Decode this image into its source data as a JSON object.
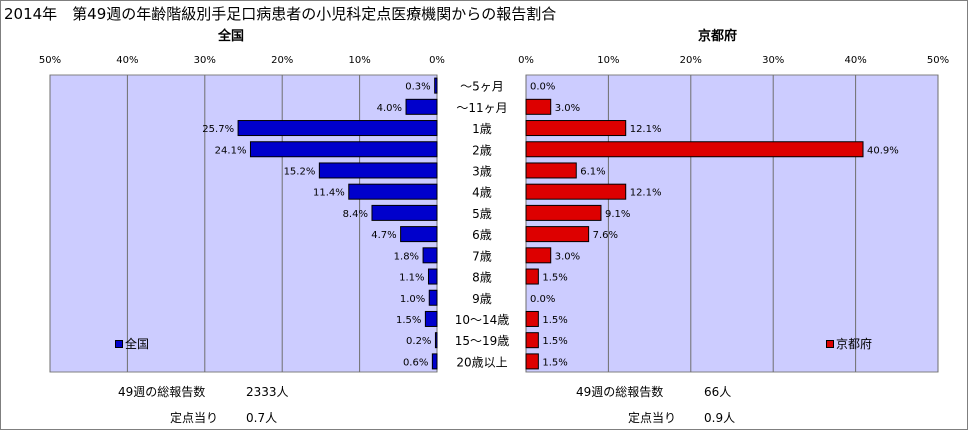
{
  "title": "2014年　第49週の年齢階級別手足口病患者の小児科定点医療機関からの報告割合",
  "colors": {
    "plot_bg": "#ccccff",
    "national_bar": "#0000cc",
    "kyoto_bar": "#dd0000",
    "grid": "#6e6e6e"
  },
  "chart_data": [
    {
      "type": "bar",
      "title": "全国",
      "orientation": "horizontal",
      "direction": "right-to-left",
      "categories": [
        "～5ヶ月",
        "～11ヶ月",
        "1歳",
        "2歳",
        "3歳",
        "4歳",
        "5歳",
        "6歳",
        "7歳",
        "8歳",
        "9歳",
        "10～14歳",
        "15～19歳",
        "20歳以上"
      ],
      "series": [
        {
          "name": "全国",
          "values": [
            0.3,
            4.0,
            25.7,
            24.1,
            15.2,
            11.4,
            8.4,
            4.7,
            1.8,
            1.1,
            1.0,
            1.5,
            0.2,
            0.6
          ]
        }
      ],
      "data_labels": [
        "0.3%",
        "4.0%",
        "25.7%",
        "24.1%",
        "15.2%",
        "11.4%",
        "8.4%",
        "4.7%",
        "1.8%",
        "1.1%",
        "1.0%",
        "1.5%",
        "0.2%",
        "0.6%"
      ],
      "xlim": [
        0,
        50
      ],
      "ticks": [
        "50%",
        "40%",
        "30%",
        "20%",
        "10%",
        "0%"
      ],
      "legend": "bottom-left",
      "grid": true
    },
    {
      "type": "bar",
      "title": "京都府",
      "orientation": "horizontal",
      "direction": "left-to-right",
      "categories": [
        "～5ヶ月",
        "～11ヶ月",
        "1歳",
        "2歳",
        "3歳",
        "4歳",
        "5歳",
        "6歳",
        "7歳",
        "8歳",
        "9歳",
        "10～14歳",
        "15～19歳",
        "20歳以上"
      ],
      "series": [
        {
          "name": "京都府",
          "values": [
            0.0,
            3.0,
            12.1,
            40.9,
            6.1,
            12.1,
            9.1,
            7.6,
            3.0,
            1.5,
            0.0,
            1.5,
            1.5,
            1.5
          ]
        }
      ],
      "data_labels": [
        "0.0%",
        "3.0%",
        "12.1%",
        "40.9%",
        "6.1%",
        "12.1%",
        "9.1%",
        "7.6%",
        "3.0%",
        "1.5%",
        "0.0%",
        "1.5%",
        "1.5%",
        "1.5%"
      ],
      "xlim": [
        0,
        50
      ],
      "ticks": [
        "0%",
        "10%",
        "20%",
        "30%",
        "40%",
        "50%"
      ],
      "legend": "bottom-right",
      "grid": true
    }
  ],
  "footer": {
    "national": {
      "total_label": "49週の総報告数",
      "total_value": "2333人",
      "per_label": "定点当り",
      "per_value": "0.7人"
    },
    "kyoto": {
      "total_label": "49週の総報告数",
      "total_value": "66人",
      "per_label": "定点当り",
      "per_value": "0.9人"
    }
  }
}
